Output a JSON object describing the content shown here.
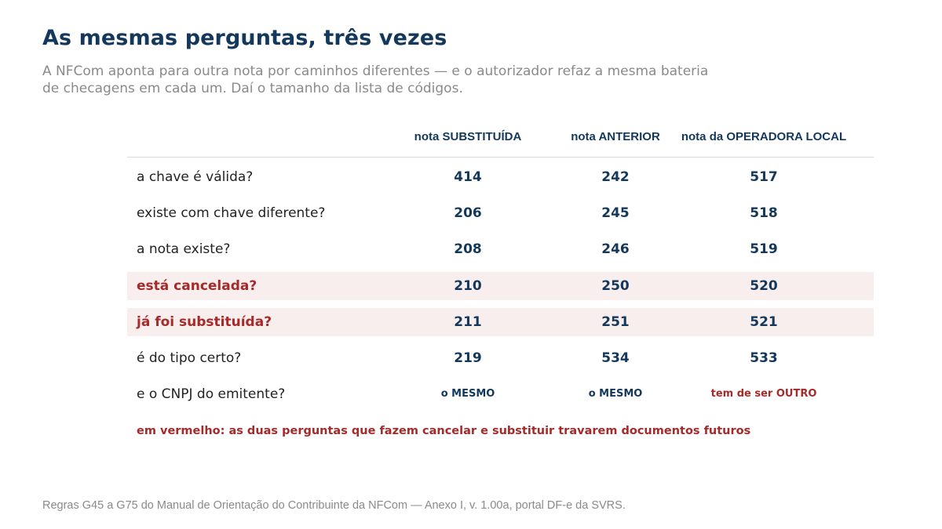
{
  "title": "As mesmas perguntas, três vezes",
  "subtitle": "A NFCom aponta para outra nota por caminhos diferentes — e o autorizador refaz a mesma bateria de checagens em cada um. Daí o tamanho da lista de códigos.",
  "chart_data": {
    "type": "table",
    "columns": [
      "nota SUBSTITUÍDA",
      "nota ANTERIOR",
      "nota da OPERADORA LOCAL"
    ],
    "rows": [
      {
        "question": "a chave é válida?",
        "values": [
          "414",
          "242",
          "517"
        ],
        "highlight": false
      },
      {
        "question": "existe com chave diferente?",
        "values": [
          "206",
          "245",
          "518"
        ],
        "highlight": false
      },
      {
        "question": "a nota existe?",
        "values": [
          "208",
          "246",
          "519"
        ],
        "highlight": false
      },
      {
        "question": "está cancelada?",
        "values": [
          "210",
          "250",
          "520"
        ],
        "highlight": true
      },
      {
        "question": "já foi substituída?",
        "values": [
          "211",
          "251",
          "521"
        ],
        "highlight": true
      },
      {
        "question": "é do tipo certo?",
        "values": [
          "219",
          "534",
          "533"
        ],
        "highlight": false
      },
      {
        "question": "e o CNPJ do emitente?",
        "values": [
          "o MESMO",
          "o MESMO",
          "tem de ser OUTRO"
        ],
        "highlight": false
      }
    ]
  },
  "note": "em vermelho: as duas perguntas que fazem cancelar e substituir travarem documentos futuros",
  "source": "Regras G45 a G75 do Manual de Orientação do Contribuinte da NFCom — Anexo I, v. 1.00a, portal DF-e da SVRS.",
  "colors": {
    "navy": "#14385c",
    "red": "#a52a2a",
    "highlight": "#f9eeee",
    "muted": "#8a8a8a"
  }
}
